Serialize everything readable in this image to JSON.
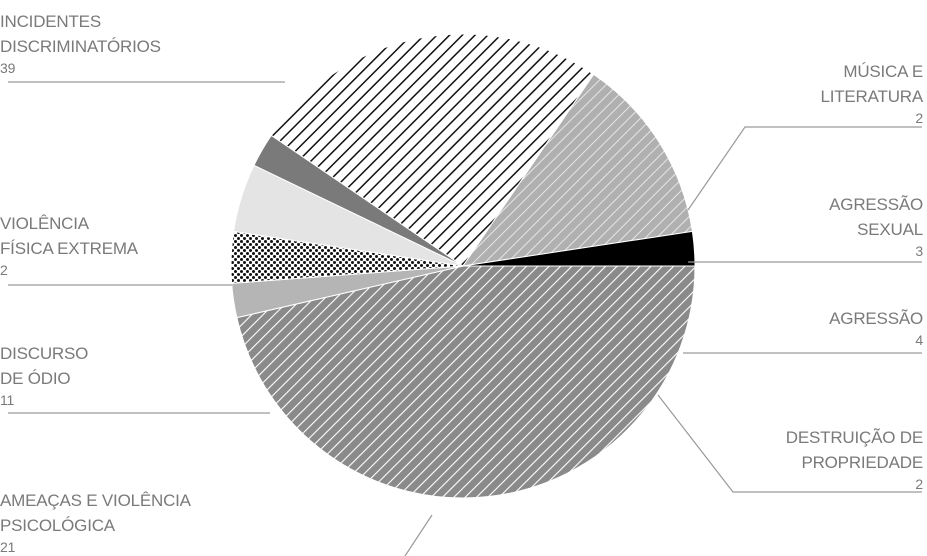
{
  "chart_data": {
    "type": "pie",
    "slices": [
      {
        "label": "INCIDENTES\nDISCRIMINATÓRIOS",
        "value": 39,
        "pattern": "hatch-dense-gray",
        "color": "#8c8c8c"
      },
      {
        "label": "MÚSICA E\nLITERATURA",
        "value": 2,
        "pattern": "solid",
        "color": "#b5b5b5"
      },
      {
        "label": "AGRESSÃO\nSEXUAL",
        "value": 3,
        "pattern": "dots",
        "color": "#000000"
      },
      {
        "label": "AGRESSÃO",
        "value": 4,
        "pattern": "solid",
        "color": "#e4e4e4"
      },
      {
        "label": "DESTRUIÇÃO DE\nPROPRIEDADE",
        "value": 2,
        "pattern": "solid",
        "color": "#7a7a7a"
      },
      {
        "label": "AMEAÇAS E VIOLÊNCIA\nPSICOLÓGICA",
        "value": 21,
        "pattern": "hatch-black",
        "color": "#000000"
      },
      {
        "label": "DISCURSO\nDE ÓDIO",
        "value": 11,
        "pattern": "hatch-light-gray",
        "color": "#a8a8a8"
      },
      {
        "label": "VIOLÊNCIA\nFÍSICA EXTREMA",
        "value": 2,
        "pattern": "solid",
        "color": "#000000"
      }
    ],
    "start": "east",
    "direction": "clockwise"
  }
}
